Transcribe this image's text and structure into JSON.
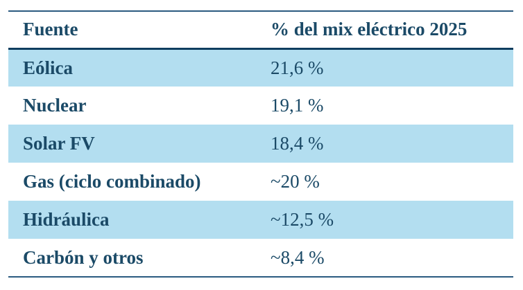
{
  "chart_data": {
    "type": "table",
    "columns": [
      "Fuente",
      "% del mix eléctrico 2025"
    ],
    "rows": [
      [
        "Eólica",
        "21,6 %"
      ],
      [
        "Nuclear",
        "19,1 %"
      ],
      [
        "Solar FV",
        "18,4 %"
      ],
      [
        "Gas (ciclo combinado)",
        "~20 %"
      ],
      [
        "Hidráulica",
        "~12,5 %"
      ],
      [
        "Carbón y otros",
        "~8,4 %"
      ]
    ],
    "values_numeric": [
      21.6,
      19.1,
      18.4,
      20,
      12.5,
      8.4
    ],
    "layout_hints": {
      "row_striping": "odd rows highlighted",
      "rules": [
        "top",
        "below-header",
        "bottom"
      ]
    }
  },
  "colors": {
    "text_navy": "#1b4a67",
    "row_highlight_blue": "#b3def0",
    "rule_navy": "#2a5a80",
    "rule_header_dark": "#0f3d5f",
    "background": "#ffffff"
  }
}
